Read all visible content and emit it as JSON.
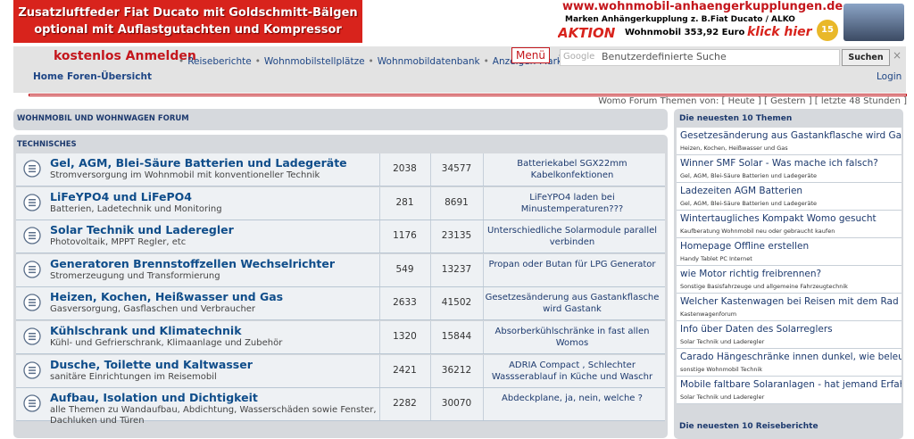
{
  "banner_left": {
    "line1": "Zusatzluftfeder Fiat Ducato mit Goldschmitt-Bälgen",
    "line2": "optional mit Auflastgutachten und Kompressor"
  },
  "banner_right": {
    "url": "www.wohnmobil-anhaengerkupplungen.de",
    "line1": "Marken Anhängerkupplung z. B.Fiat Ducato / ALKO",
    "aktion": "AKTION",
    "price": "Wohnmobil 353,92 Euro",
    "cta": "klick hier",
    "badge": "15"
  },
  "nav": {
    "register": "kostenlos Anmelden",
    "links": [
      "Reiseberichte",
      "Wohnmobilstellplätze",
      "Wohnmobildatenbank",
      "Anzeigen-Markt"
    ],
    "menu": "Menü",
    "search_brand": "Google",
    "search_placeholder": "Benutzerdefinierte Suche",
    "search_button": "Suchen",
    "clear": "×"
  },
  "breadcrumb": {
    "home": "Home",
    "index": "Foren-Übersicht",
    "login": "Login"
  },
  "topics_bar": {
    "label": "Womo Forum Themen von:",
    "today": "[ Heute ]",
    "yesterday": "[ Gestern ]",
    "last48": "[ letzte 48 Stunden ]"
  },
  "forum": {
    "title": "WOHNMOBIL UND WOHNWAGEN FORUM",
    "section": "TECHNISCHES",
    "rows": [
      {
        "title": "Gel, AGM, Blei-Säure Batterien und Ladegeräte",
        "desc": "Stromversorgung im Wohnmobil mit konventioneller Technik",
        "topics": "2038",
        "posts": "34577",
        "last": "Batteriekabel SGX22mm Kabelkonfektionen"
      },
      {
        "title": "LiFeYPO4 und LiFePO4",
        "desc": "Batterien, Ladetechnik und Monitoring",
        "topics": "281",
        "posts": "8691",
        "last": "LiFeYPO4 laden bei Minustemperaturen???"
      },
      {
        "title": "Solar Technik und Laderegler",
        "desc": "Photovoltaik, MPPT Regler, etc",
        "topics": "1176",
        "posts": "23135",
        "last": "Unterschiedliche Solarmodule parallel verbinden"
      },
      {
        "title": "Generatoren Brennstoffzellen Wechselrichter",
        "desc": "Stromerzeugung und Transformierung",
        "topics": "549",
        "posts": "13237",
        "last": "Propan oder Butan für LPG Generator"
      },
      {
        "title": "Heizen, Kochen, Heißwasser und Gas",
        "desc": "Gasversorgung, Gasflaschen und Verbraucher",
        "topics": "2633",
        "posts": "41502",
        "last": "Gesetzesänderung aus Gastankflasche wird Gastank"
      },
      {
        "title": "Kühlschrank und Klimatechnik",
        "desc": "Kühl- und Gefrierschrank, Klimaanlage und Zubehör",
        "topics": "1320",
        "posts": "15844",
        "last": "Absorberkühlschränke in fast allen Womos"
      },
      {
        "title": "Dusche, Toilette und Kaltwasser",
        "desc": "sanitäre Einrichtungen im Reisemobil",
        "topics": "2421",
        "posts": "36212",
        "last": "ADRIA Compact , Schlechter Wassserablauf in Küche und Waschr"
      },
      {
        "title": "Aufbau, Isolation und Dichtigkeit",
        "desc": "alle Themen zu Wandaufbau, Abdichtung, Wasserschäden sowie Fenster, Dachluken und Türen",
        "topics": "2282",
        "posts": "30070",
        "last": "Abdeckplane, ja, nein, welche ?"
      }
    ]
  },
  "sidebar": {
    "title": "Die neuesten 10 Themen",
    "items": [
      {
        "title": "Gesetzesänderung aus Gastankflasche wird Gastank",
        "forum": "Heizen, Kochen, Heißwasser und Gas"
      },
      {
        "title": "Winner SMF Solar - Was mache ich falsch?",
        "forum": "Gel, AGM, Blei-Säure Batterien und Ladegeräte"
      },
      {
        "title": "Ladezeiten AGM Batterien",
        "forum": "Gel, AGM, Blei-Säure Batterien und Ladegeräte"
      },
      {
        "title": "Wintertaugliches Kompakt Womo gesucht",
        "forum": "Kaufberatung Wohnmobil neu oder gebraucht kaufen"
      },
      {
        "title": "Homepage Offline erstellen",
        "forum": "Handy Tablet PC Internet"
      },
      {
        "title": "wie Motor richtig freibrennen?",
        "forum": "Sonstige Basisfahrzeuge und allgemeine Fahrzeugtechnik"
      },
      {
        "title": "Welcher Kastenwagen bei Reisen mit dem Rad",
        "forum": "Kastenwagenforum"
      },
      {
        "title": "Info über Daten des Solarreglers",
        "forum": "Solar Technik und Laderegler"
      },
      {
        "title": "Carado Hängeschränke innen dunkel, wie beleuchten?",
        "forum": "sonstige Wohnmobil Technik"
      },
      {
        "title": "Mobile faltbare Solaranlagen - hat jemand Erfahrungen?",
        "forum": "Solar Technik und Laderegler"
      }
    ],
    "travel_title": "Die neuesten 10 Reiseberichte"
  }
}
